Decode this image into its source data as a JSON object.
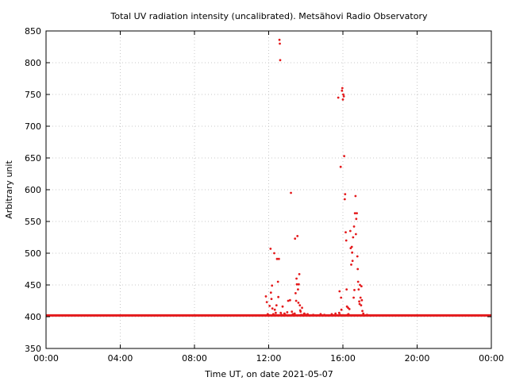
{
  "chart_data": {
    "type": "scatter",
    "title": "Total UV radiation intensity (uncalibrated). Metsähovi Radio Observatory",
    "xlabel": "Time UT, on date 2021-05-07",
    "ylabel": "Arbitrary unit",
    "xlim_hours": [
      0,
      24
    ],
    "ylim": [
      350,
      850
    ],
    "x_tick_hours": [
      0,
      4,
      8,
      12,
      16,
      20,
      24
    ],
    "x_tick_labels": [
      "00:00",
      "04:00",
      "08:00",
      "12:00",
      "16:00",
      "20:00",
      "00:00"
    ],
    "y_ticks": [
      350,
      400,
      450,
      500,
      550,
      600,
      650,
      700,
      750,
      800,
      850
    ],
    "grid": true,
    "legend": "none",
    "color": "#e41a1c",
    "baseline": {
      "value": 402,
      "from_hour": 0,
      "to_hour": 24
    },
    "series": [
      {
        "points": [
          [
            11.85,
            432
          ],
          [
            11.9,
            423
          ],
          [
            11.95,
            404
          ],
          [
            12.05,
            417
          ],
          [
            12.1,
            507
          ],
          [
            12.12,
            438
          ],
          [
            12.15,
            428
          ],
          [
            12.18,
            449
          ],
          [
            12.2,
            413
          ],
          [
            12.25,
            404
          ],
          [
            12.3,
            500
          ],
          [
            12.33,
            411
          ],
          [
            12.38,
            406
          ],
          [
            12.42,
            418
          ],
          [
            12.45,
            491
          ],
          [
            12.5,
            455
          ],
          [
            12.52,
            431
          ],
          [
            12.55,
            491
          ],
          [
            12.58,
            836
          ],
          [
            12.6,
            830
          ],
          [
            12.62,
            804
          ],
          [
            12.65,
            406
          ],
          [
            12.7,
            403
          ],
          [
            12.75,
            416
          ],
          [
            12.8,
            402
          ],
          [
            12.85,
            405
          ],
          [
            12.9,
            403
          ],
          [
            13.0,
            407
          ],
          [
            13.05,
            425
          ],
          [
            13.1,
            402
          ],
          [
            13.15,
            426
          ],
          [
            13.2,
            595
          ],
          [
            13.25,
            408
          ],
          [
            13.3,
            404
          ],
          [
            13.35,
            402
          ],
          [
            13.4,
            405
          ],
          [
            13.42,
            523
          ],
          [
            13.45,
            437
          ],
          [
            13.48,
            425
          ],
          [
            13.5,
            460
          ],
          [
            13.52,
            451
          ],
          [
            13.55,
            527
          ],
          [
            13.58,
            443
          ],
          [
            13.6,
            422
          ],
          [
            13.62,
            451
          ],
          [
            13.65,
            467
          ],
          [
            13.68,
            418
          ],
          [
            13.7,
            410
          ],
          [
            13.72,
            408
          ],
          [
            13.75,
            403
          ],
          [
            13.8,
            414
          ],
          [
            13.85,
            402
          ],
          [
            13.9,
            404
          ],
          [
            14.0,
            403
          ],
          [
            14.1,
            404
          ],
          [
            14.2,
            402
          ],
          [
            14.4,
            403
          ],
          [
            14.6,
            402
          ],
          [
            14.8,
            404
          ],
          [
            15.0,
            403
          ],
          [
            15.2,
            402
          ],
          [
            15.4,
            404
          ],
          [
            15.6,
            405
          ],
          [
            15.75,
            745
          ],
          [
            15.8,
            406
          ],
          [
            15.85,
            403
          ],
          [
            15.88,
            636
          ],
          [
            15.9,
            430
          ],
          [
            15.92,
            411
          ],
          [
            15.95,
            756
          ],
          [
            15.97,
            760
          ],
          [
            16.0,
            742
          ],
          [
            16.02,
            750
          ],
          [
            16.05,
            747
          ],
          [
            16.07,
            653
          ],
          [
            16.1,
            585
          ],
          [
            16.12,
            593
          ],
          [
            16.15,
            533
          ],
          [
            16.18,
            520
          ],
          [
            16.2,
            443
          ],
          [
            16.22,
            416
          ],
          [
            16.25,
            403
          ],
          [
            16.3,
            404
          ],
          [
            16.35,
            412
          ],
          [
            16.4,
            535
          ],
          [
            16.42,
            508
          ],
          [
            16.45,
            482
          ],
          [
            16.48,
            510
          ],
          [
            16.5,
            501
          ],
          [
            16.52,
            488
          ],
          [
            16.55,
            525
          ],
          [
            16.6,
            542
          ],
          [
            16.62,
            442
          ],
          [
            16.65,
            563
          ],
          [
            16.68,
            590
          ],
          [
            16.7,
            530
          ],
          [
            16.72,
            554
          ],
          [
            16.75,
            563
          ],
          [
            16.78,
            495
          ],
          [
            16.8,
            475
          ],
          [
            16.82,
            455
          ],
          [
            16.85,
            443
          ],
          [
            16.88,
            424
          ],
          [
            16.9,
            420
          ],
          [
            16.92,
            450
          ],
          [
            16.95,
            430
          ],
          [
            16.98,
            418
          ],
          [
            17.0,
            448
          ],
          [
            17.02,
            426
          ],
          [
            17.05,
            409
          ],
          [
            17.1,
            405
          ],
          [
            17.15,
            402
          ],
          [
            17.3,
            403
          ],
          [
            17.5,
            402
          ],
          [
            15.82,
            440
          ],
          [
            16.28,
            414
          ],
          [
            16.58,
            430
          ],
          [
            12.0,
            402
          ],
          [
            13.92,
            405
          ]
        ]
      }
    ]
  }
}
